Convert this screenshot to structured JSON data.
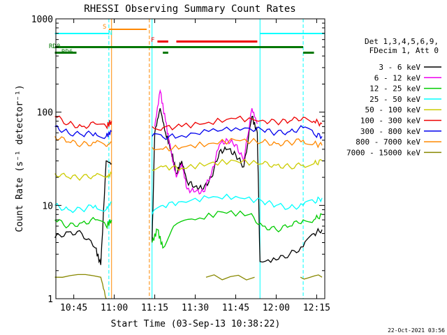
{
  "chart_data": {
    "type": "line",
    "title": "RHESSI Observing Summary Count Rates",
    "xlabel": "Start Time (03-Sep-13 10:38:22)",
    "ylabel": "Count Rate (s⁻¹ detector⁻¹)",
    "yscale": "log",
    "ylim": [
      1,
      1000
    ],
    "xlim": [
      "10:38:22",
      "12:18:00"
    ],
    "x_ticks": [
      "10:45",
      "11:00",
      "11:15",
      "11:30",
      "11:45",
      "12:00",
      "12:15"
    ],
    "y_ticks": [
      "1",
      "10",
      "100",
      "1000"
    ],
    "legend_header": [
      "Det 1,3,4,5,6,9,",
      "FDecim 1, Att 0"
    ],
    "legend_position": "right",
    "footer": "22-Oct-2021 03:56",
    "series": [
      {
        "name": "3 - 6 keV",
        "color": "#000000",
        "points": [
          [
            "10:38",
            4.5
          ],
          [
            "10:43",
            5.2
          ],
          [
            "10:48",
            5
          ],
          [
            "10:53",
            3.5
          ],
          [
            "10:55",
            2.3
          ],
          [
            "10:57",
            30
          ],
          [
            "10:59",
            28
          ],
          [
            "11:00",
            null
          ],
          [
            "11:13",
            null
          ],
          [
            "11:14",
            4
          ],
          [
            "11:15",
            60
          ],
          [
            "11:17",
            110
          ],
          [
            "11:19",
            60
          ],
          [
            "11:21",
            40
          ],
          [
            "11:23",
            22
          ],
          [
            "11:25",
            30
          ],
          [
            "11:27",
            18
          ],
          [
            "11:30",
            16
          ],
          [
            "11:33",
            15
          ],
          [
            "11:36",
            20
          ],
          [
            "11:39",
            38
          ],
          [
            "11:42",
            40
          ],
          [
            "11:45",
            35
          ],
          [
            "11:48",
            26
          ],
          [
            "11:51",
            90
          ],
          [
            "11:53",
            60
          ],
          [
            "11:54",
            2.5
          ],
          [
            "12:00",
            2.6
          ],
          [
            "12:05",
            3
          ],
          [
            "12:10",
            3.6
          ],
          [
            "12:14",
            5
          ],
          [
            "12:17",
            5.5
          ]
        ]
      },
      {
        "name": "6 - 12 keV",
        "color": "#ee00ee",
        "points": [
          [
            "10:38",
            null
          ],
          [
            "11:14",
            null
          ],
          [
            "11:15",
            70
          ],
          [
            "11:17",
            170
          ],
          [
            "11:19",
            80
          ],
          [
            "11:21",
            38
          ],
          [
            "11:23",
            20
          ],
          [
            "11:25",
            28
          ],
          [
            "11:27",
            15
          ],
          [
            "11:30",
            14
          ],
          [
            "11:33",
            14
          ],
          [
            "11:36",
            22
          ],
          [
            "11:39",
            45
          ],
          [
            "11:42",
            50
          ],
          [
            "11:45",
            45
          ],
          [
            "11:48",
            30
          ],
          [
            "11:51",
            110
          ],
          [
            "11:53",
            75
          ],
          [
            "11:55",
            null
          ],
          [
            "12:18",
            null
          ]
        ]
      },
      {
        "name": "12 - 25 keV",
        "color": "#00cc00",
        "points": [
          [
            "10:38",
            7
          ],
          [
            "10:43",
            6
          ],
          [
            "10:48",
            6.5
          ],
          [
            "10:53",
            7
          ],
          [
            "10:57",
            6
          ],
          [
            "10:59",
            7
          ],
          [
            "11:00",
            null
          ],
          [
            "11:13",
            null
          ],
          [
            "11:14",
            4
          ],
          [
            "11:16",
            5.5
          ],
          [
            "11:18",
            3.5
          ],
          [
            "11:22",
            6
          ],
          [
            "11:30",
            7
          ],
          [
            "11:40",
            8.5
          ],
          [
            "11:50",
            8
          ],
          [
            "11:55",
            6
          ],
          [
            "12:00",
            5.5
          ],
          [
            "12:05",
            6
          ],
          [
            "12:10",
            7
          ],
          [
            "12:14",
            7
          ],
          [
            "12:17",
            8
          ]
        ]
      },
      {
        "name": "25 - 50 keV",
        "color": "#00ffff",
        "points": [
          [
            "10:38",
            10
          ],
          [
            "10:43",
            9
          ],
          [
            "10:48",
            9
          ],
          [
            "10:53",
            10
          ],
          [
            "10:57",
            9
          ],
          [
            "10:59",
            11
          ],
          [
            "11:00",
            null
          ],
          [
            "11:13",
            null
          ],
          [
            "11:14",
            8
          ],
          [
            "11:18",
            10
          ],
          [
            "11:25",
            11
          ],
          [
            "11:35",
            12
          ],
          [
            "11:45",
            12.5
          ],
          [
            "11:55",
            11
          ],
          [
            "12:00",
            10
          ],
          [
            "12:05",
            9.5
          ],
          [
            "12:10",
            10
          ],
          [
            "12:14",
            11
          ],
          [
            "12:17",
            12
          ]
        ]
      },
      {
        "name": "50 - 100 keV",
        "color": "#cccc00",
        "points": [
          [
            "10:38",
            22
          ],
          [
            "10:43",
            20
          ],
          [
            "10:48",
            20
          ],
          [
            "10:53",
            21
          ],
          [
            "10:57",
            20
          ],
          [
            "10:59",
            22
          ],
          [
            "11:00",
            null
          ],
          [
            "11:13",
            null
          ],
          [
            "11:14",
            24
          ],
          [
            "11:18",
            26
          ],
          [
            "11:25",
            25
          ],
          [
            "11:35",
            28
          ],
          [
            "11:45",
            30
          ],
          [
            "11:55",
            28
          ],
          [
            "12:00",
            27
          ],
          [
            "12:05",
            26
          ],
          [
            "12:10",
            27
          ],
          [
            "12:14",
            28
          ],
          [
            "12:17",
            30
          ]
        ]
      },
      {
        "name": "100 - 300 keV",
        "color": "#ee0000",
        "points": [
          [
            "10:38",
            90
          ],
          [
            "10:43",
            75
          ],
          [
            "10:48",
            70
          ],
          [
            "10:53",
            75
          ],
          [
            "10:57",
            70
          ],
          [
            "10:59",
            80
          ],
          [
            "11:00",
            null
          ],
          [
            "11:13",
            null
          ],
          [
            "11:14",
            70
          ],
          [
            "11:18",
            68
          ],
          [
            "11:25",
            70
          ],
          [
            "11:35",
            78
          ],
          [
            "11:45",
            85
          ],
          [
            "11:55",
            82
          ],
          [
            "12:00",
            78
          ],
          [
            "12:05",
            80
          ],
          [
            "12:10",
            88
          ],
          [
            "12:14",
            80
          ],
          [
            "12:17",
            75
          ]
        ]
      },
      {
        "name": "300 - 800 keV",
        "color": "#0000ee",
        "points": [
          [
            "10:38",
            70
          ],
          [
            "10:43",
            60
          ],
          [
            "10:48",
            57
          ],
          [
            "10:53",
            60
          ],
          [
            "10:57",
            55
          ],
          [
            "10:59",
            62
          ],
          [
            "11:00",
            null
          ],
          [
            "11:13",
            null
          ],
          [
            "11:14",
            55
          ],
          [
            "11:18",
            54
          ],
          [
            "11:25",
            56
          ],
          [
            "11:35",
            62
          ],
          [
            "11:45",
            68
          ],
          [
            "11:55",
            64
          ],
          [
            "12:00",
            60
          ],
          [
            "12:05",
            62
          ],
          [
            "12:10",
            68
          ],
          [
            "12:14",
            58
          ],
          [
            "12:17",
            55
          ]
        ]
      },
      {
        "name": "800 - 7000 keV",
        "color": "#ff8800",
        "points": [
          [
            "10:38",
            55
          ],
          [
            "10:43",
            48
          ],
          [
            "10:48",
            45
          ],
          [
            "10:53",
            47
          ],
          [
            "10:57",
            43
          ],
          [
            "10:59",
            48
          ],
          [
            "11:00",
            null
          ],
          [
            "11:13",
            null
          ],
          [
            "11:14",
            42
          ],
          [
            "11:18",
            40
          ],
          [
            "11:25",
            42
          ],
          [
            "11:35",
            46
          ],
          [
            "11:45",
            50
          ],
          [
            "11:55",
            48
          ],
          [
            "12:00",
            46
          ],
          [
            "12:05",
            47
          ],
          [
            "12:10",
            50
          ],
          [
            "12:14",
            46
          ],
          [
            "12:17",
            44
          ]
        ]
      },
      {
        "name": "7000 - 15000 keV",
        "color": "#888800",
        "points": [
          [
            "10:38",
            1.7
          ],
          [
            "10:55",
            1.7
          ],
          [
            "10:57",
            1
          ],
          [
            "11:00",
            null
          ],
          [
            "11:33",
            null
          ],
          [
            "11:34",
            1.7
          ],
          [
            "11:52",
            1.7
          ],
          [
            "11:53",
            null
          ],
          [
            "12:08",
            null
          ],
          [
            "12:09",
            1.7
          ],
          [
            "12:17",
            1.7
          ]
        ]
      }
    ],
    "flags": [
      {
        "label": "RD0",
        "color": "#007700"
      },
      {
        "label": "RD6",
        "color": "#007700"
      },
      {
        "label": "S",
        "color": "#ff8800"
      },
      {
        "label": "N",
        "color": "#00ffff"
      },
      {
        "label": "F",
        "color": "#ee0000"
      }
    ]
  }
}
